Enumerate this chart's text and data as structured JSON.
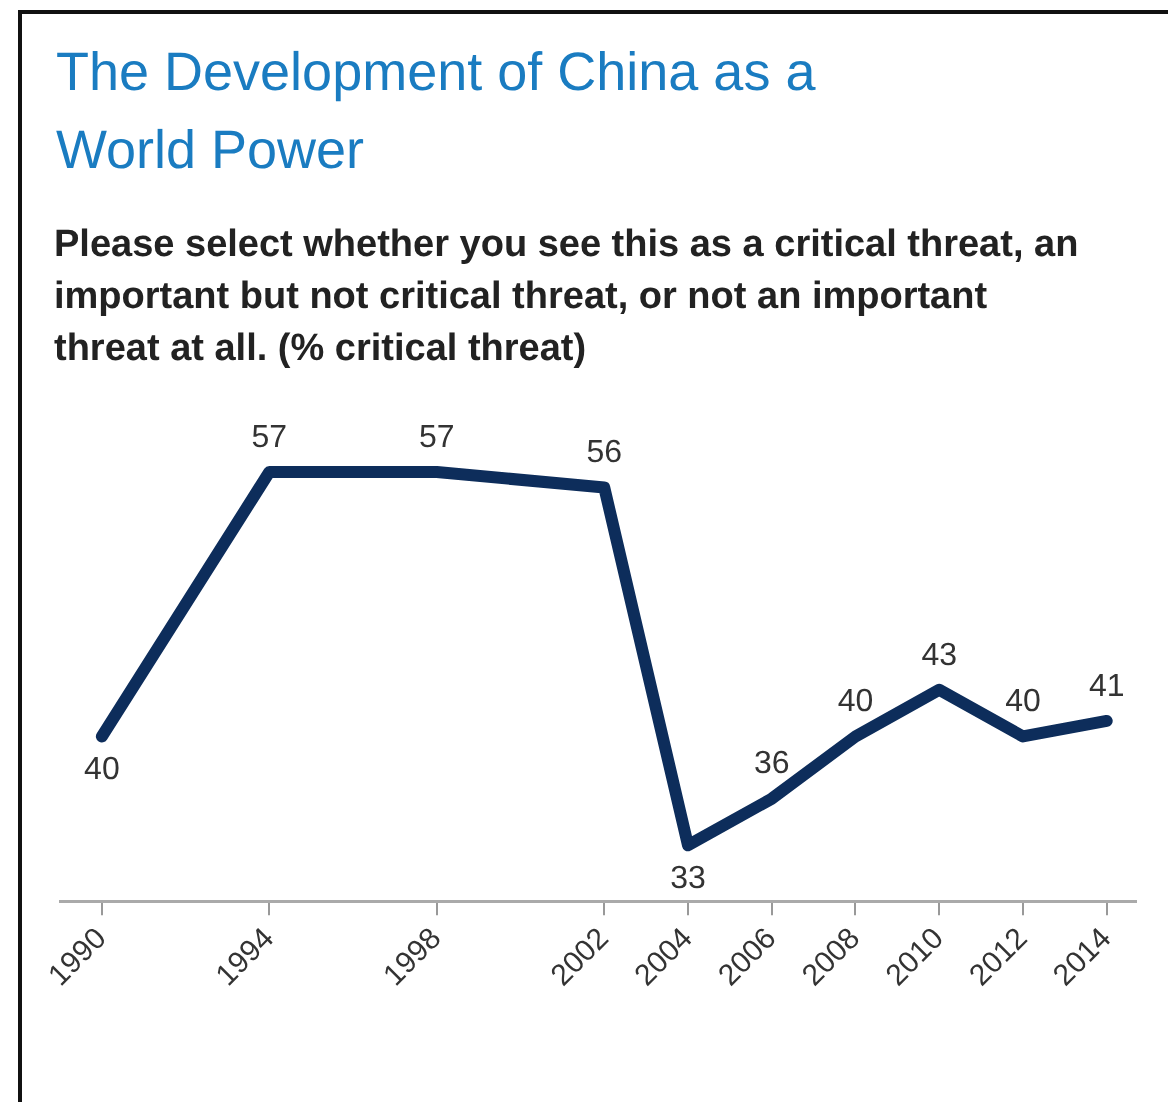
{
  "chart_data": {
    "type": "line",
    "title": "The Development of China as a World Power",
    "subtitle": "Please select whether you see this as a critical threat, an important but not critical threat, or not an important threat at all. (% critical threat)",
    "x": [
      1990,
      1994,
      1998,
      2002,
      2004,
      2006,
      2008,
      2010,
      2012,
      2014
    ],
    "values": [
      40,
      57,
      57,
      56,
      33,
      36,
      40,
      43,
      40,
      41
    ],
    "color": "#0d2d5b",
    "xlim": [
      1989,
      2014.7
    ],
    "xticks": [
      1990,
      1994,
      1998,
      2002,
      2004,
      2006,
      2008,
      2010,
      2012,
      2014
    ],
    "data_labels": true
  }
}
